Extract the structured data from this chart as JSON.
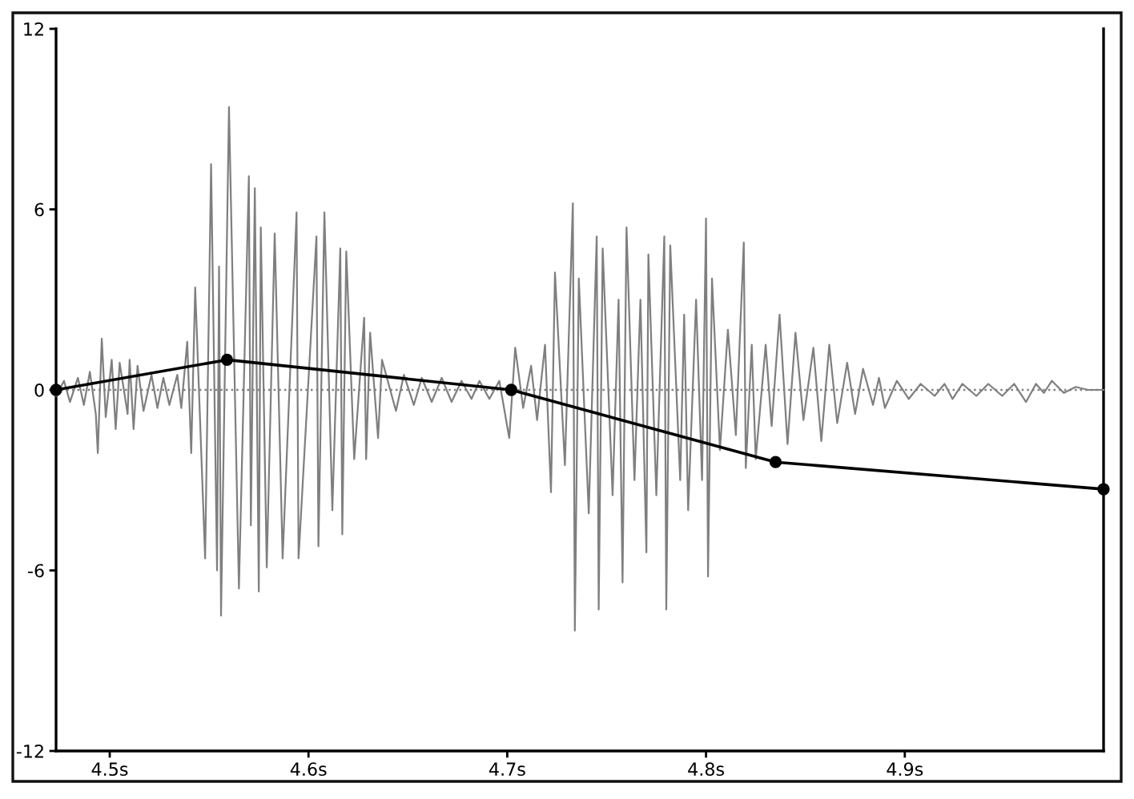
{
  "chart_data": {
    "type": "line",
    "xlim": [
      4.473,
      5.0
    ],
    "xticks": [
      {
        "value": 4.5,
        "label": "4.5s"
      },
      {
        "value": 4.6,
        "label": "4.6s"
      },
      {
        "value": 4.7,
        "label": "4.7s"
      },
      {
        "value": 4.8,
        "label": "4.8s"
      },
      {
        "value": 4.9,
        "label": "4.9s"
      }
    ],
    "ylim": [
      -12,
      12
    ],
    "yticks": [
      -12,
      -6,
      0,
      6,
      12
    ],
    "ref_lines": [
      {
        "axis": "y",
        "value": 0,
        "color": "#808080",
        "line_style": "dotted"
      }
    ],
    "series": [
      {
        "color": "#7f7f7f",
        "marker": "none",
        "line_style": "solid",
        "x": [
          4.473,
          4.477,
          4.48,
          4.484,
          4.487,
          4.49,
          4.493,
          4.494,
          4.496,
          4.498,
          4.501,
          4.503,
          4.505,
          4.509,
          4.51,
          4.512,
          4.514,
          4.517,
          4.521,
          4.524,
          4.527,
          4.53,
          4.534,
          4.536,
          4.539,
          4.541,
          4.543,
          4.548,
          4.551,
          4.554,
          4.555,
          4.556,
          4.56,
          4.565,
          4.57,
          4.571,
          4.573,
          4.575,
          4.576,
          4.579,
          4.583,
          4.587,
          4.594,
          4.595,
          4.604,
          4.605,
          4.608,
          4.612,
          4.616,
          4.617,
          4.619,
          4.623,
          4.628,
          4.629,
          4.631,
          4.635,
          4.637,
          4.644,
          4.648,
          4.653,
          4.657,
          4.662,
          4.667,
          4.672,
          4.677,
          4.682,
          4.686,
          4.691,
          4.696,
          4.701,
          4.704,
          4.708,
          4.712,
          4.715,
          4.719,
          4.722,
          4.724,
          4.729,
          4.733,
          4.734,
          4.736,
          4.741,
          4.745,
          4.746,
          4.748,
          4.753,
          4.756,
          4.758,
          4.76,
          4.764,
          4.767,
          4.77,
          4.771,
          4.775,
          4.779,
          4.78,
          4.782,
          4.787,
          4.789,
          4.791,
          4.795,
          4.798,
          4.8,
          4.801,
          4.803,
          4.807,
          4.811,
          4.815,
          4.819,
          4.82,
          4.823,
          4.825,
          4.83,
          4.833,
          4.837,
          4.841,
          4.845,
          4.849,
          4.854,
          4.858,
          4.862,
          4.866,
          4.871,
          4.875,
          4.879,
          4.884,
          4.887,
          4.89,
          4.896,
          4.902,
          4.908,
          4.915,
          4.92,
          4.924,
          4.929,
          4.936,
          4.942,
          4.949,
          4.955,
          4.961,
          4.966,
          4.97,
          4.974,
          4.98,
          4.986,
          4.992,
          5.0
        ],
        "values": [
          -0.2,
          0.3,
          -0.4,
          0.4,
          -0.5,
          0.6,
          -0.8,
          -2.1,
          1.7,
          -0.9,
          1.0,
          -1.3,
          0.9,
          -0.8,
          1.0,
          -1.3,
          0.8,
          -0.7,
          0.5,
          -0.6,
          0.4,
          -0.5,
          0.5,
          -0.6,
          1.6,
          -2.1,
          3.4,
          -5.6,
          7.5,
          -6.0,
          4.1,
          -7.5,
          9.4,
          -6.6,
          7.1,
          -4.5,
          6.7,
          -6.7,
          5.4,
          -5.9,
          5.2,
          -5.6,
          5.9,
          -5.6,
          5.1,
          -5.2,
          5.9,
          -4.0,
          4.7,
          -4.8,
          4.6,
          -2.3,
          2.4,
          -2.3,
          1.9,
          -1.6,
          1.0,
          -0.7,
          0.5,
          -0.5,
          0.4,
          -0.4,
          0.4,
          -0.4,
          0.3,
          -0.3,
          0.3,
          -0.3,
          0.3,
          -1.6,
          1.4,
          -0.6,
          0.8,
          -1.0,
          1.5,
          -3.4,
          3.9,
          -2.5,
          6.2,
          -8.0,
          3.7,
          -4.1,
          5.1,
          -7.3,
          4.7,
          -3.5,
          3.0,
          -6.4,
          5.4,
          -3.0,
          3.0,
          -5.4,
          4.5,
          -3.5,
          5.1,
          -7.3,
          4.8,
          -3.0,
          2.5,
          -4.0,
          3.0,
          -3.0,
          5.7,
          -6.2,
          3.7,
          -2.0,
          2.0,
          -1.5,
          4.9,
          -2.6,
          1.5,
          -2.3,
          1.5,
          -1.2,
          2.5,
          -1.8,
          1.9,
          -1.0,
          1.4,
          -1.7,
          1.5,
          -1.1,
          0.9,
          -0.8,
          0.7,
          -0.5,
          0.4,
          -0.6,
          0.3,
          -0.3,
          0.2,
          -0.2,
          0.2,
          -0.3,
          0.2,
          -0.2,
          0.2,
          -0.2,
          0.2,
          -0.4,
          0.2,
          -0.1,
          0.3,
          -0.1,
          0.1,
          0.0,
          0.0
        ]
      },
      {
        "color": "#000000",
        "marker": "circle",
        "line_style": "solid",
        "x": [
          4.473,
          4.559,
          4.702,
          4.835,
          5.0
        ],
        "values": [
          0,
          1.0,
          0,
          -2.4,
          -3.3
        ]
      }
    ]
  }
}
